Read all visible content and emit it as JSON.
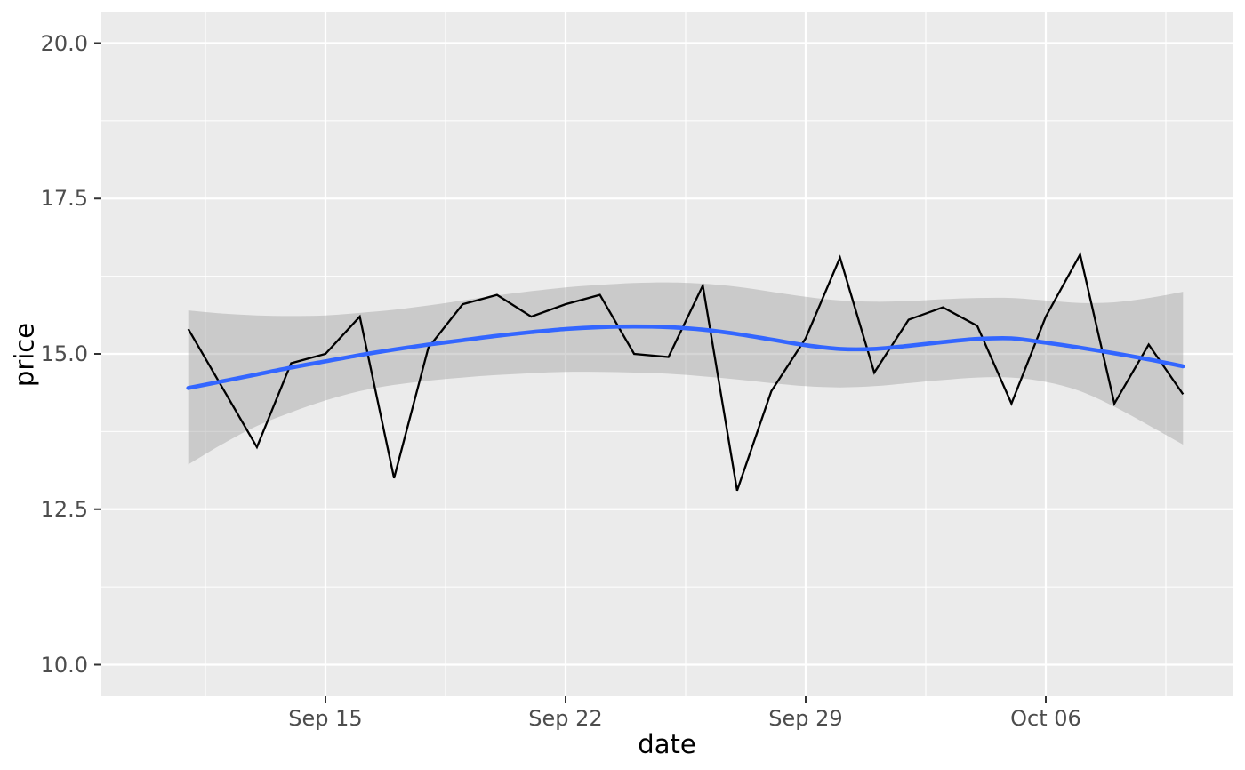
{
  "chart_data": {
    "type": "line",
    "title": "",
    "xlabel": "date",
    "ylabel": "price",
    "x": [
      "Sep 11",
      "Sep 12",
      "Sep 13",
      "Sep 14",
      "Sep 15",
      "Sep 16",
      "Sep 17",
      "Sep 18",
      "Sep 19",
      "Sep 20",
      "Sep 21",
      "Sep 22",
      "Sep 23",
      "Sep 24",
      "Sep 25",
      "Sep 26",
      "Sep 27",
      "Sep 28",
      "Sep 29",
      "Sep 30",
      "Oct 01",
      "Oct 02",
      "Oct 03",
      "Oct 04",
      "Oct 05",
      "Oct 06",
      "Oct 07",
      "Oct 08",
      "Oct 09",
      "Oct 10"
    ],
    "series": [
      {
        "name": "price",
        "geom": "line",
        "color": "#000000",
        "values": [
          15.4,
          14.45,
          13.5,
          14.85,
          15.0,
          15.6,
          13.0,
          15.1,
          15.8,
          15.95,
          15.6,
          15.8,
          15.95,
          15.0,
          14.95,
          16.1,
          12.8,
          14.4,
          15.25,
          16.55,
          14.7,
          15.55,
          15.75,
          15.45,
          14.2,
          15.6,
          16.6,
          14.2,
          15.15,
          14.35
        ]
      },
      {
        "name": "loess-smooth",
        "geom": "smooth-line",
        "color": "#3366FF",
        "values": [
          14.45,
          14.56,
          14.67,
          14.78,
          14.88,
          14.98,
          15.07,
          15.15,
          15.22,
          15.29,
          15.35,
          15.4,
          15.43,
          15.44,
          15.43,
          15.39,
          15.32,
          15.23,
          15.14,
          15.08,
          15.08,
          15.13,
          15.19,
          15.24,
          15.25,
          15.18,
          15.1,
          15.01,
          14.91,
          14.8
        ]
      },
      {
        "name": "confidence-band",
        "geom": "ribbon",
        "color": "rgba(153,153,153,0.4)",
        "upper": [
          15.7,
          15.65,
          15.62,
          15.61,
          15.62,
          15.66,
          15.71,
          15.78,
          15.86,
          15.94,
          16.01,
          16.07,
          16.11,
          16.14,
          16.15,
          16.13,
          16.08,
          16.0,
          15.92,
          15.86,
          15.84,
          15.85,
          15.88,
          15.9,
          15.9,
          15.86,
          15.82,
          15.83,
          15.9,
          16.0
        ],
        "lower": [
          13.22,
          13.55,
          13.84,
          14.06,
          14.25,
          14.4,
          14.5,
          14.57,
          14.62,
          14.66,
          14.69,
          14.71,
          14.71,
          14.7,
          14.68,
          14.64,
          14.59,
          14.53,
          14.48,
          14.46,
          14.48,
          14.53,
          14.58,
          14.62,
          14.62,
          14.55,
          14.4,
          14.15,
          13.85,
          13.54
        ]
      }
    ],
    "x_axis": {
      "major_ticks": [
        {
          "label": "Sep 15",
          "index": 4
        },
        {
          "label": "Sep 22",
          "index": 11
        },
        {
          "label": "Sep 29",
          "index": 18
        },
        {
          "label": "Oct 06",
          "index": 25
        }
      ],
      "minor_tick_indices": [
        0.5,
        7.5,
        14.5,
        21.5,
        28.5
      ]
    },
    "y_axis": {
      "major_ticks": [
        {
          "label": "10.0",
          "value": 10.0
        },
        {
          "label": "12.5",
          "value": 12.5
        },
        {
          "label": "15.0",
          "value": 15.0
        },
        {
          "label": "17.5",
          "value": 17.5
        },
        {
          "label": "20.0",
          "value": 20.0
        }
      ],
      "minor_tick_values": [
        11.25,
        13.75,
        16.25,
        18.75
      ],
      "range": [
        9.5,
        20.5
      ]
    },
    "legend": false,
    "grid": true,
    "style": {
      "panel_bg": "#EBEBEB",
      "grid_color": "#FFFFFF",
      "tick_mark_color": "#333333",
      "tick_label_color": "#4D4D4D",
      "axis_title_color": "#000000",
      "outer_bg": "#FFFFFF"
    }
  }
}
